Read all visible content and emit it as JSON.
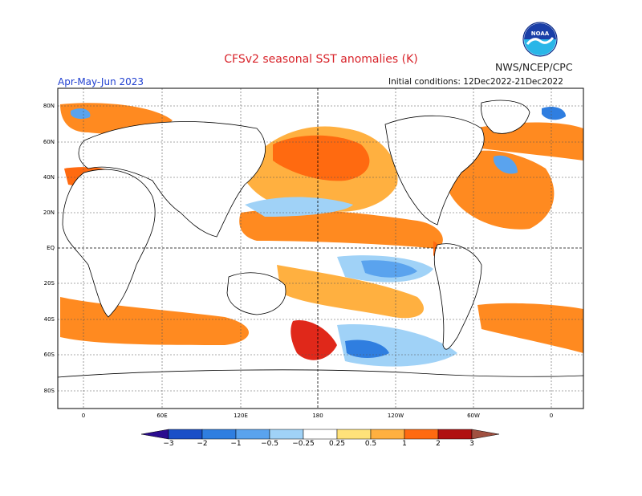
{
  "header": {
    "title": "CFSv2 seasonal SST anomalies (K)",
    "agency": "NWS/NCEP/CPC",
    "season": "Apr-May-Jun 2023",
    "initial_conditions": "Initial conditions: 12Dec2022-21Dec2022",
    "logo_text": "NOAA"
  },
  "map": {
    "lat_labels": [
      "80N",
      "60N",
      "40N",
      "20N",
      "EQ",
      "20S",
      "40S",
      "60S",
      "80S"
    ],
    "lon_labels": [
      "0",
      "60E",
      "120E",
      "180",
      "120W",
      "60W",
      "0"
    ],
    "colors": {
      "ocean_neutral": "#ffffff",
      "land_outline": "#000000"
    }
  },
  "colorbar": {
    "tick_labels": [
      "−3",
      "−2",
      "−1",
      "−0.5",
      "−0.25",
      "0.25",
      "0.5",
      "1",
      "2",
      "3"
    ],
    "colors": [
      "#2a0c8f",
      "#1a4fc7",
      "#2f7ee0",
      "#5aa3ee",
      "#a0d2f7",
      "#ffffff",
      "#ffe27a",
      "#ffb040",
      "#ff6a10",
      "#e0281a",
      "#b01010",
      "#a05040"
    ]
  }
}
